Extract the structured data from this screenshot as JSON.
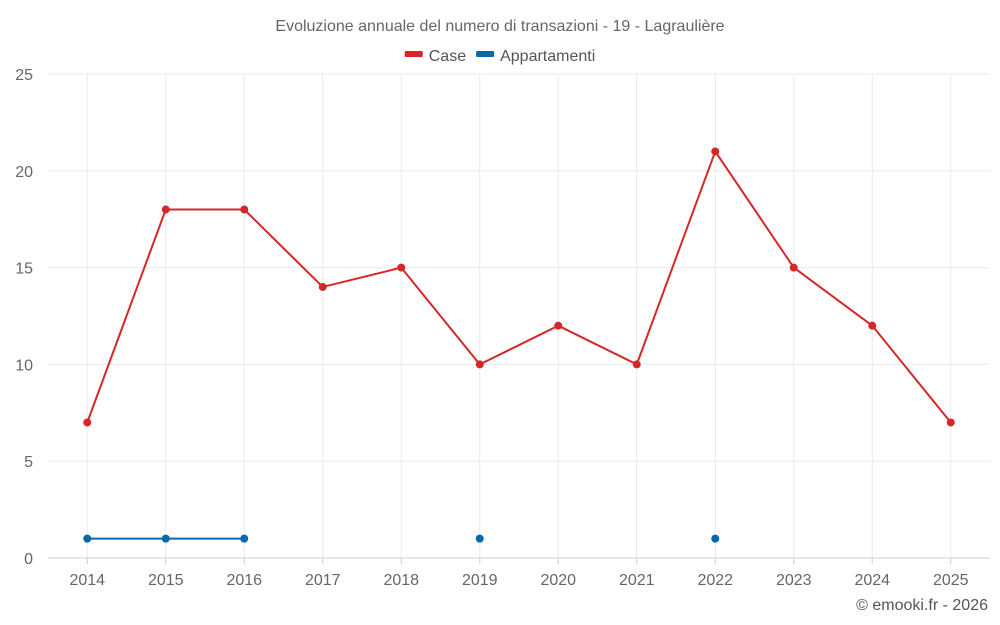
{
  "chart_data": {
    "type": "line",
    "title": "Evoluzione annuale del numero di transazioni - 19 - Lagraulière",
    "categories": [
      "2014",
      "2015",
      "2016",
      "2017",
      "2018",
      "2019",
      "2020",
      "2021",
      "2022",
      "2023",
      "2024",
      "2025"
    ],
    "ylim": [
      0,
      25
    ],
    "yticks": [
      0,
      5,
      10,
      15,
      20,
      25
    ],
    "grid": true,
    "legend_position": "top-center",
    "series": [
      {
        "name": "Case",
        "color": "#d62728",
        "values": [
          7,
          18,
          18,
          14,
          15,
          10,
          12,
          10,
          21,
          15,
          12,
          7
        ]
      },
      {
        "name": "Appartamenti",
        "color": "#0868ac",
        "values": [
          1,
          1,
          1,
          null,
          null,
          1,
          null,
          null,
          1,
          null,
          null,
          null
        ]
      }
    ]
  },
  "credit": "© emooki.fr - 2026"
}
